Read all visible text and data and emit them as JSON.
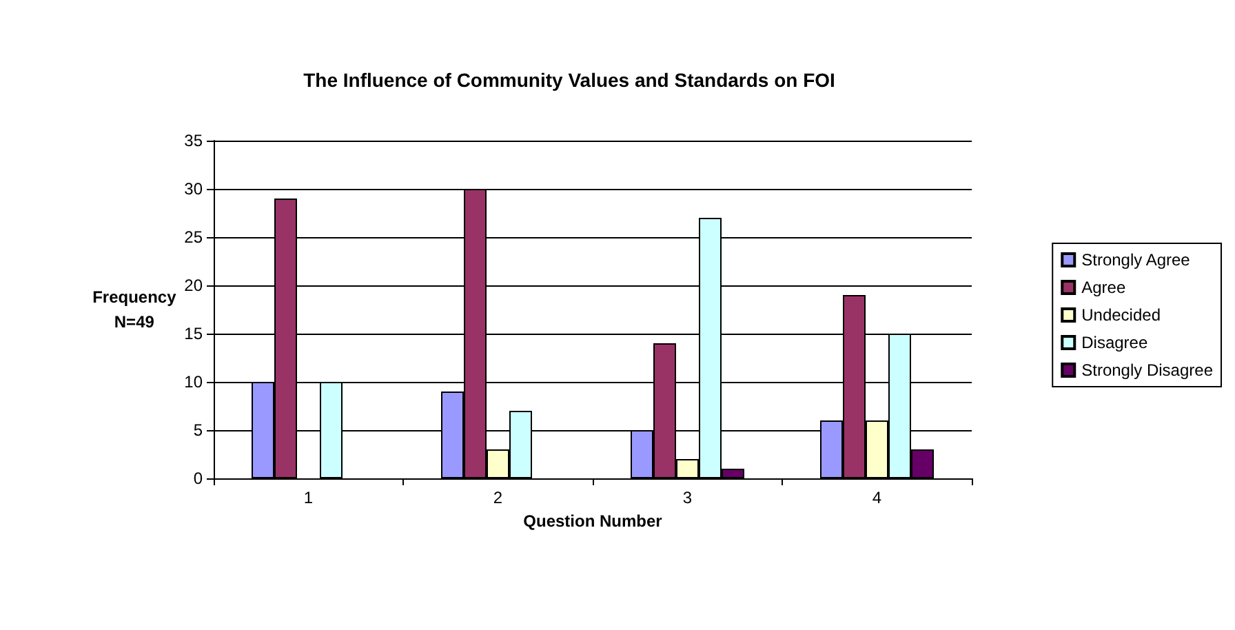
{
  "chart_data": {
    "type": "bar",
    "title": "The Influence of Community Values and Standards on FOI",
    "xlabel": "Question Number",
    "ylabel": "Frequency\nN=49",
    "categories": [
      "1",
      "2",
      "3",
      "4"
    ],
    "series": [
      {
        "name": "Strongly Agree",
        "color": "#9999ff",
        "values": [
          10,
          9,
          5,
          6
        ]
      },
      {
        "name": "Agree",
        "color": "#993366",
        "values": [
          29,
          30,
          14,
          19
        ]
      },
      {
        "name": "Undecided",
        "color": "#ffffcc",
        "values": [
          null,
          3,
          2,
          6
        ]
      },
      {
        "name": "Disagree",
        "color": "#ccffff",
        "values": [
          10,
          7,
          27,
          15
        ]
      },
      {
        "name": "Strongly Disagree",
        "color": "#660066",
        "values": [
          null,
          null,
          1,
          3
        ]
      }
    ],
    "ylim": [
      0,
      35
    ],
    "yticks": [
      0,
      5,
      10,
      15,
      20,
      25,
      30,
      35
    ],
    "grid": "y",
    "legend": "right"
  }
}
